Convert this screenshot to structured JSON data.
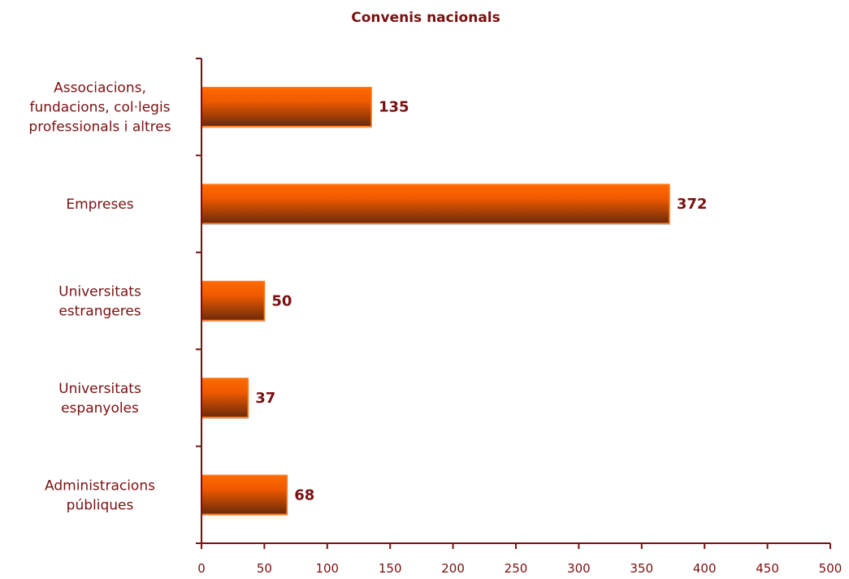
{
  "chart_data": {
    "type": "bar",
    "orientation": "horizontal",
    "title": "Convenis nacionals",
    "xlabel": "",
    "ylabel": "",
    "categories": [
      [
        "Associacions,",
        "fundacions, col·legis",
        "professionals i altres"
      ],
      [
        "Empreses"
      ],
      [
        "Universitats",
        "estrangeres"
      ],
      [
        "Universitats",
        "espanyoles"
      ],
      [
        "Administracions",
        "públiques"
      ]
    ],
    "values": [
      135,
      372,
      50,
      37,
      68
    ],
    "xlim": [
      0,
      500
    ],
    "x_ticks": [
      0,
      50,
      100,
      150,
      200,
      250,
      300,
      350,
      400,
      450,
      500
    ],
    "grid": false,
    "legend": "none",
    "colors": {
      "bar_top": "#ff6a00",
      "bar_bottom": "#6b2a0a",
      "bar_edge": "#ff7a1a",
      "text": "#7a1010",
      "axis": "#7a1010"
    }
  }
}
